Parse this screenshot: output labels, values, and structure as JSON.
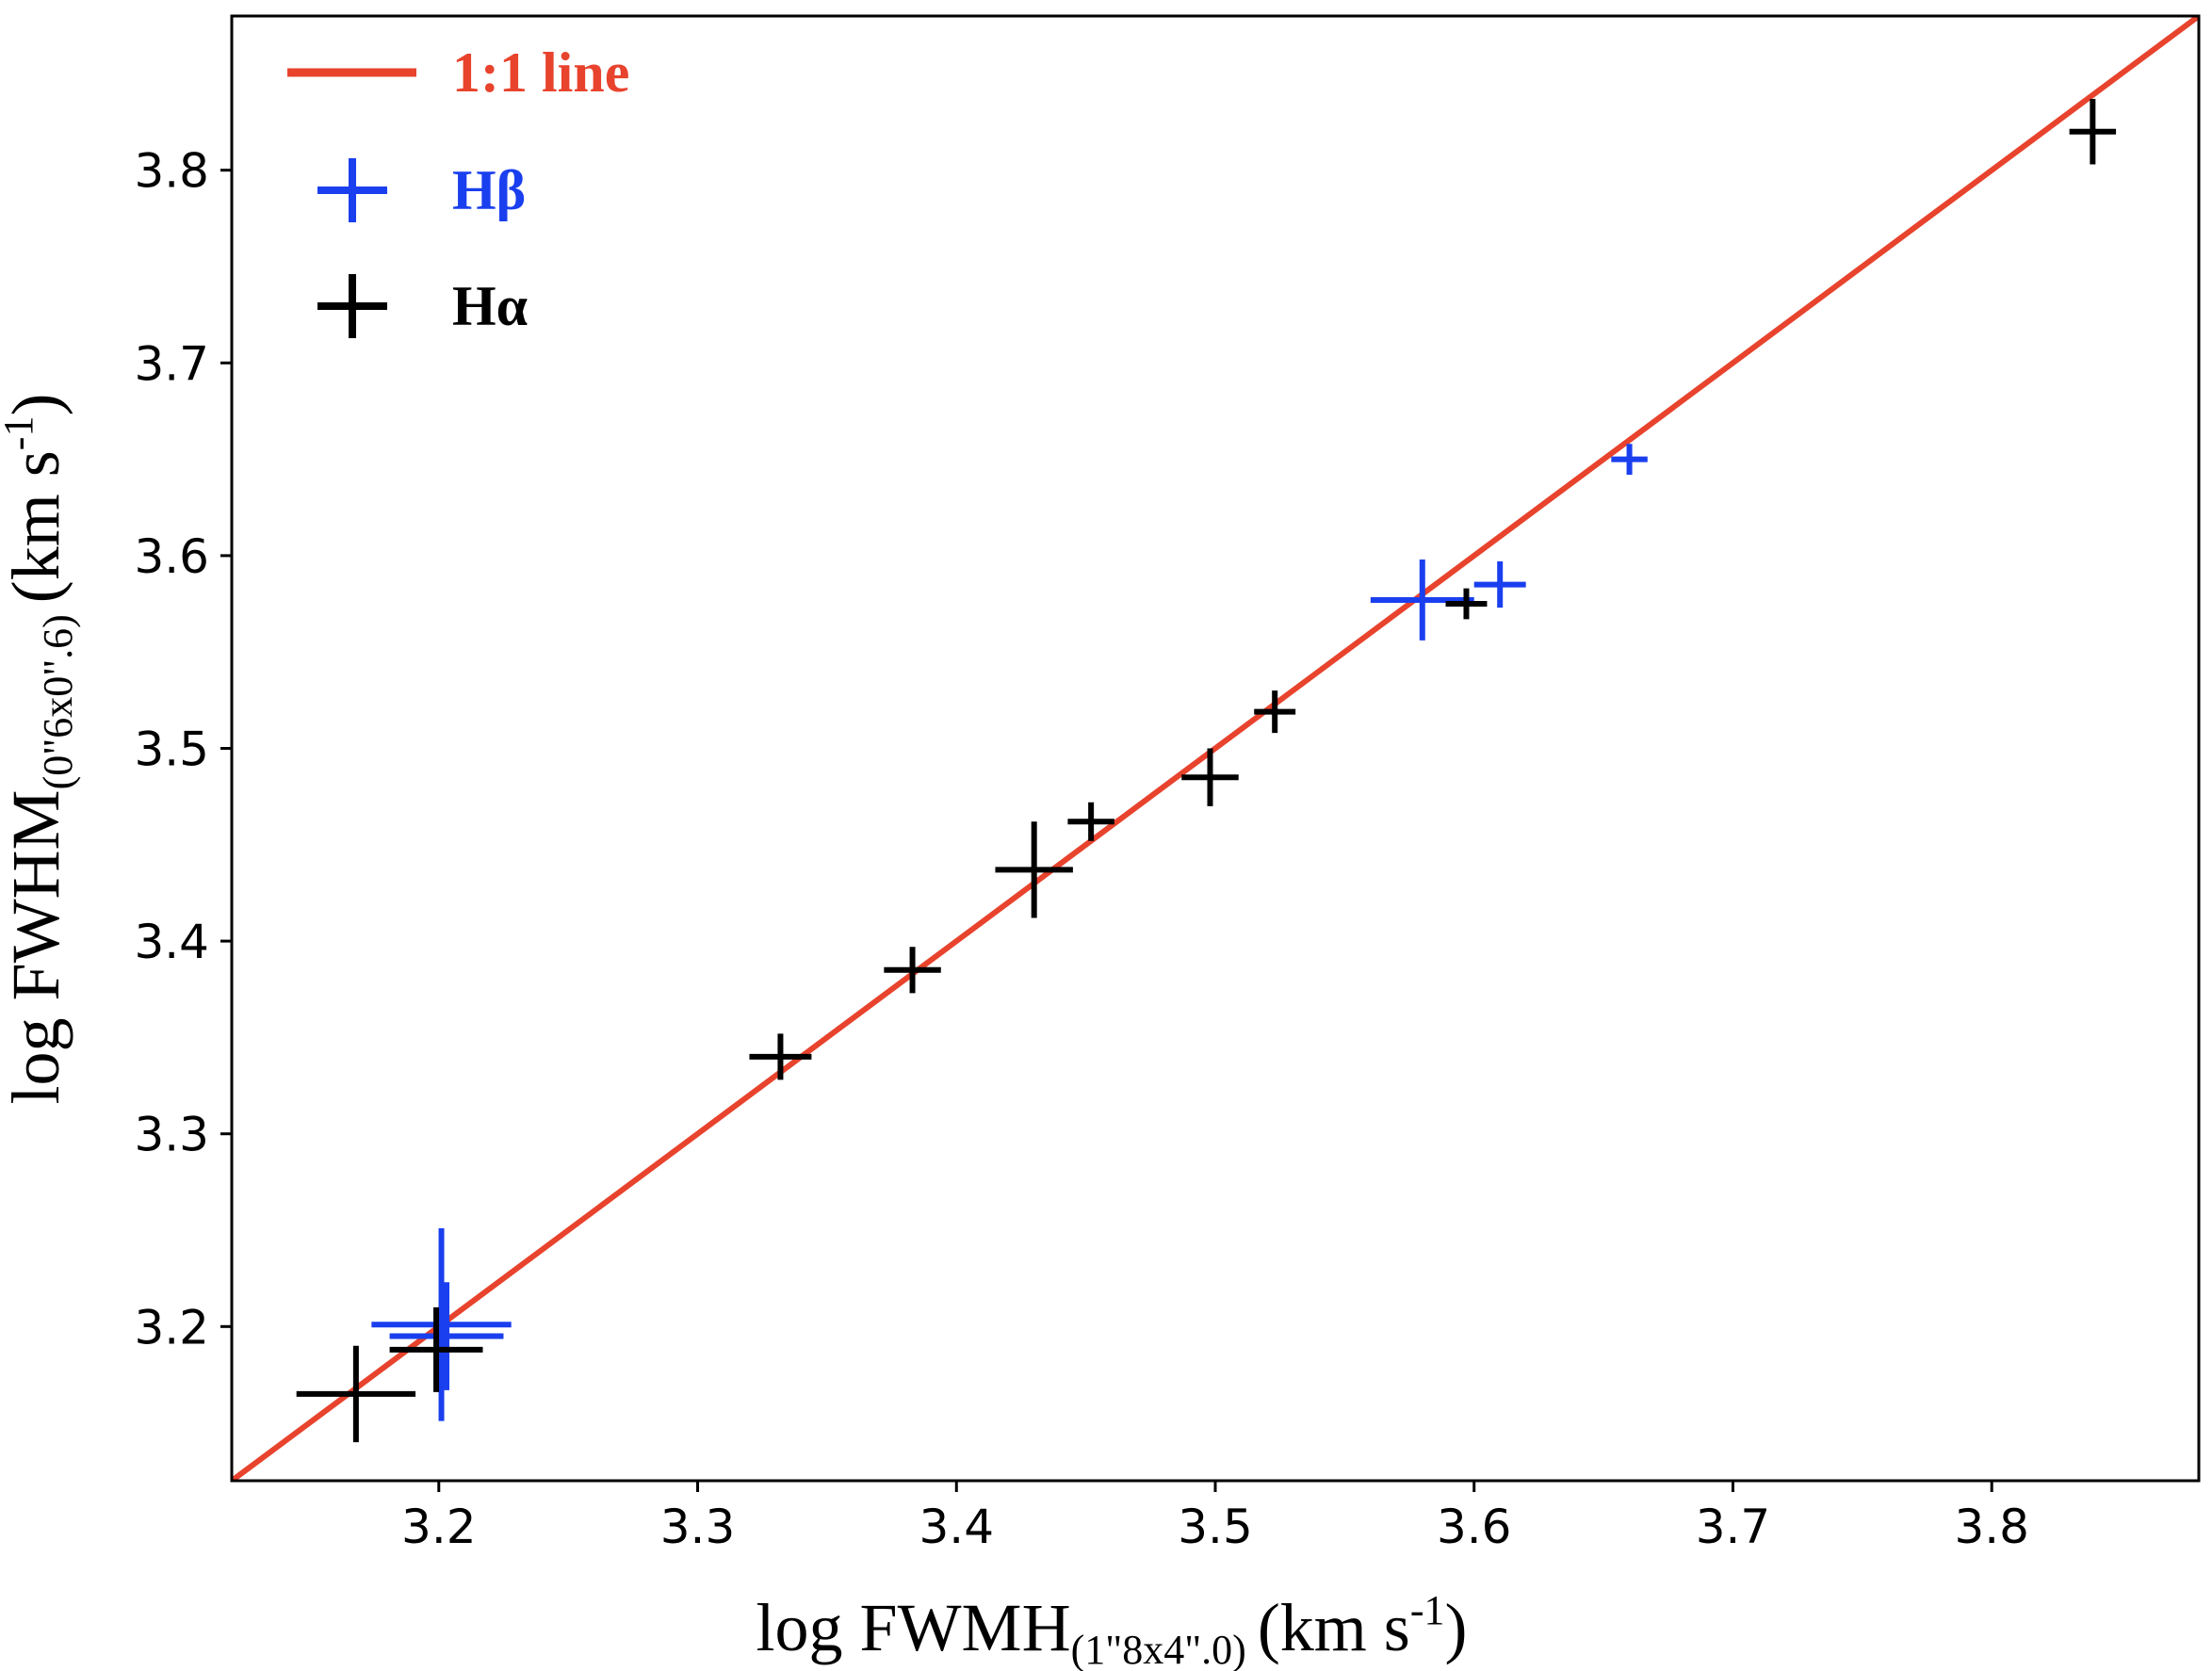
{
  "chart_data": {
    "type": "scatter",
    "title": "",
    "xlabel": {
      "main": "log FWMH",
      "sub": "(1\"8x4\".0)",
      "units": "(km s",
      "sup": "-1",
      "close": ")"
    },
    "ylabel": {
      "main": "log FWHM",
      "sub": "(0\"6x0\".6)",
      "units": "(km s",
      "sup": "-1",
      "close": ")"
    },
    "xlim": [
      3.12,
      3.88
    ],
    "ylim": [
      3.12,
      3.88
    ],
    "xticks": [
      "3.2",
      "3.3",
      "3.4",
      "3.5",
      "3.6",
      "3.7",
      "3.8"
    ],
    "yticks": [
      "3.2",
      "3.3",
      "3.4",
      "3.5",
      "3.6",
      "3.7",
      "3.8"
    ],
    "legend_position": "top-left",
    "legend": [
      {
        "label": "1:1 line",
        "marker": "line",
        "color": "#e8432d"
      },
      {
        "label": "Hβ",
        "marker": "plus",
        "color": "#1a3fef"
      },
      {
        "label": "Hα",
        "marker": "plus",
        "color": "#000000"
      }
    ],
    "reference_line": {
      "name": "1:1 line",
      "slope": 1,
      "intercept": 0,
      "color": "#e8432d"
    },
    "series": [
      {
        "name": "Hβ",
        "color": "#1a3fef",
        "points": [
          {
            "x": 3.201,
            "y": 3.201,
            "xerr": 0.027,
            "yerr": 0.05
          },
          {
            "x": 3.203,
            "y": 3.195,
            "xerr": 0.022,
            "yerr": 0.028
          },
          {
            "x": 3.58,
            "y": 3.577,
            "xerr": 0.02,
            "yerr": 0.021
          },
          {
            "x": 3.61,
            "y": 3.585,
            "xerr": 0.01,
            "yerr": 0.012
          },
          {
            "x": 3.66,
            "y": 3.65,
            "xerr": 0.007,
            "yerr": 0.008
          }
        ]
      },
      {
        "name": "Hα",
        "color": "#000000",
        "points": [
          {
            "x": 3.168,
            "y": 3.165,
            "xerr": 0.023,
            "yerr": 0.025
          },
          {
            "x": 3.199,
            "y": 3.188,
            "xerr": 0.018,
            "yerr": 0.022
          },
          {
            "x": 3.332,
            "y": 3.34,
            "xerr": 0.012,
            "yerr": 0.012
          },
          {
            "x": 3.383,
            "y": 3.385,
            "xerr": 0.011,
            "yerr": 0.012
          },
          {
            "x": 3.43,
            "y": 3.437,
            "xerr": 0.015,
            "yerr": 0.025
          },
          {
            "x": 3.452,
            "y": 3.462,
            "xerr": 0.009,
            "yerr": 0.01
          },
          {
            "x": 3.498,
            "y": 3.485,
            "xerr": 0.011,
            "yerr": 0.015
          },
          {
            "x": 3.523,
            "y": 3.519,
            "xerr": 0.008,
            "yerr": 0.011
          },
          {
            "x": 3.597,
            "y": 3.575,
            "xerr": 0.008,
            "yerr": 0.008
          },
          {
            "x": 3.839,
            "y": 3.82,
            "xerr": 0.009,
            "yerr": 0.017
          }
        ]
      }
    ]
  }
}
